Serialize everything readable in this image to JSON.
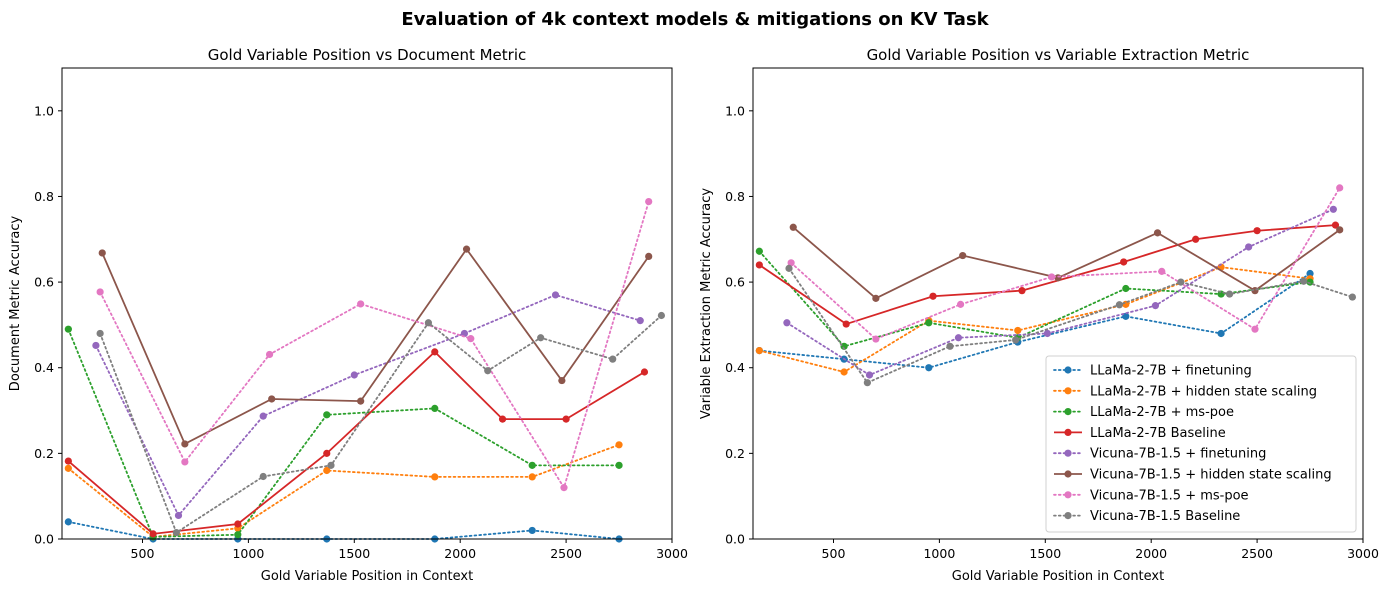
{
  "figure_title": "Evaluation of 4k context models & mitigations on KV Task",
  "series_styles": [
    {
      "name": "LLaMa-2-7B + finetuning",
      "color": "#1f77b4",
      "dash": "dotted"
    },
    {
      "name": "LLaMa-2-7B + hidden state scaling",
      "color": "#ff7f0e",
      "dash": "dotted"
    },
    {
      "name": "LLaMa-2-7B + ms-poe",
      "color": "#2ca02c",
      "dash": "dotted"
    },
    {
      "name": "LLaMa-2-7B Baseline",
      "color": "#d62728",
      "dash": "solid"
    },
    {
      "name": "Vicuna-7B-1.5 + finetuning",
      "color": "#9467bd",
      "dash": "dotted"
    },
    {
      "name": "Vicuna-7B-1.5 + hidden state scaling",
      "color": "#8c564b",
      "dash": "solid"
    },
    {
      "name": "Vicuna-7B-1.5 + ms-poe",
      "color": "#e377c2",
      "dash": "dotted"
    },
    {
      "name": "Vicuna-7B-1.5 Baseline",
      "color": "#7f7f7f",
      "dash": "dotted"
    }
  ],
  "chart_data": [
    {
      "type": "line",
      "title": "Gold Variable Position vs Document Metric",
      "xlabel": "Gold Variable Position in Context",
      "ylabel": "Document Metric Accuracy",
      "xlim": [
        120,
        3000
      ],
      "ylim": [
        0,
        1.1
      ],
      "xticks": [
        500,
        1000,
        1500,
        2000,
        2500,
        3000
      ],
      "yticks": [
        0.0,
        0.2,
        0.4,
        0.6,
        0.8,
        1.0
      ],
      "legend": false,
      "series": [
        {
          "name": "LLaMa-2-7B + finetuning",
          "x": [
            150,
            550,
            950,
            1370,
            1880,
            2340,
            2750
          ],
          "y": [
            0.04,
            0.0,
            0.0,
            0.0,
            0.0,
            0.02,
            0.0
          ]
        },
        {
          "name": "LLaMa-2-7B + hidden state scaling",
          "x": [
            150,
            550,
            950,
            1370,
            1880,
            2340,
            2750
          ],
          "y": [
            0.165,
            0.005,
            0.025,
            0.16,
            0.145,
            0.145,
            0.22
          ]
        },
        {
          "name": "LLaMa-2-7B + ms-poe",
          "x": [
            150,
            550,
            950,
            1370,
            1880,
            2340,
            2750
          ],
          "y": [
            0.49,
            0.005,
            0.01,
            0.29,
            0.305,
            0.172,
            0.172
          ]
        },
        {
          "name": "LLaMa-2-7B Baseline",
          "x": [
            150,
            550,
            950,
            1370,
            1880,
            2200,
            2500,
            2870
          ],
          "y": [
            0.182,
            0.012,
            0.035,
            0.2,
            0.437,
            0.28,
            0.28,
            0.39
          ]
        },
        {
          "name": "Vicuna-7B-1.5 + finetuning",
          "x": [
            280,
            670,
            1070,
            1500,
            2020,
            2450,
            2850
          ],
          "y": [
            0.452,
            0.055,
            0.287,
            0.383,
            0.48,
            0.57,
            0.51
          ]
        },
        {
          "name": "Vicuna-7B-1.5 + hidden state scaling",
          "x": [
            310,
            700,
            1110,
            1530,
            2030,
            2480,
            2890
          ],
          "y": [
            0.668,
            0.222,
            0.327,
            0.322,
            0.677,
            0.37,
            0.66
          ]
        },
        {
          "name": "Vicuna-7B-1.5 + ms-poe",
          "x": [
            300,
            700,
            1100,
            1530,
            2050,
            2490,
            2890
          ],
          "y": [
            0.577,
            0.18,
            0.431,
            0.549,
            0.468,
            0.12,
            0.788
          ]
        },
        {
          "name": "Vicuna-7B-1.5 Baseline",
          "x": [
            300,
            660,
            1070,
            1390,
            1850,
            2130,
            2380,
            2720,
            2950
          ],
          "y": [
            0.48,
            0.015,
            0.146,
            0.172,
            0.505,
            0.393,
            0.47,
            0.42,
            0.522
          ]
        }
      ]
    },
    {
      "type": "line",
      "title": "Gold Variable Position vs Variable Extraction Metric",
      "xlabel": "Gold Variable Position in Context",
      "ylabel": "Variable Extraction Metric Accuracy",
      "xlim": [
        120,
        3000
      ],
      "ylim": [
        0,
        1.1
      ],
      "xticks": [
        500,
        1000,
        1500,
        2000,
        2500,
        3000
      ],
      "yticks": [
        0.0,
        0.2,
        0.4,
        0.6,
        0.8,
        1.0
      ],
      "legend": true,
      "legend_position": "lower-right",
      "series": [
        {
          "name": "LLaMa-2-7B + finetuning",
          "x": [
            150,
            550,
            950,
            1370,
            1880,
            2330,
            2750
          ],
          "y": [
            0.44,
            0.42,
            0.4,
            0.46,
            0.52,
            0.48,
            0.62
          ]
        },
        {
          "name": "LLaMa-2-7B + hidden state scaling",
          "x": [
            150,
            550,
            950,
            1370,
            1880,
            2330,
            2750
          ],
          "y": [
            0.44,
            0.39,
            0.51,
            0.487,
            0.548,
            0.635,
            0.608
          ]
        },
        {
          "name": "LLaMa-2-7B + ms-poe",
          "x": [
            150,
            550,
            950,
            1370,
            1880,
            2330,
            2750
          ],
          "y": [
            0.672,
            0.45,
            0.505,
            0.47,
            0.585,
            0.572,
            0.6
          ]
        },
        {
          "name": "LLaMa-2-7B Baseline",
          "x": [
            150,
            560,
            970,
            1390,
            1870,
            2210,
            2500,
            2870
          ],
          "y": [
            0.64,
            0.502,
            0.567,
            0.58,
            0.647,
            0.7,
            0.72,
            0.733
          ]
        },
        {
          "name": "Vicuna-7B-1.5 + finetuning",
          "x": [
            280,
            670,
            1090,
            1510,
            2020,
            2460,
            2860
          ],
          "y": [
            0.505,
            0.383,
            0.47,
            0.48,
            0.545,
            0.682,
            0.77
          ]
        },
        {
          "name": "Vicuna-7B-1.5 + hidden state scaling",
          "x": [
            310,
            700,
            1110,
            1560,
            2030,
            2490,
            2890
          ],
          "y": [
            0.728,
            0.562,
            0.662,
            0.61,
            0.715,
            0.58,
            0.722
          ]
        },
        {
          "name": "Vicuna-7B-1.5 + ms-poe",
          "x": [
            300,
            700,
            1100,
            1530,
            2050,
            2490,
            2890
          ],
          "y": [
            0.645,
            0.467,
            0.548,
            0.612,
            0.625,
            0.49,
            0.82
          ]
        },
        {
          "name": "Vicuna-7B-1.5 Baseline",
          "x": [
            290,
            660,
            1050,
            1360,
            1850,
            2140,
            2370,
            2720,
            2950
          ],
          "y": [
            0.632,
            0.365,
            0.45,
            0.465,
            0.547,
            0.6,
            0.572,
            0.602,
            0.565
          ]
        }
      ]
    }
  ]
}
